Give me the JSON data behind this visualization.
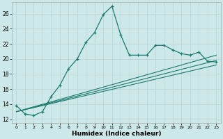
{
  "xlabel": "Humidex (Indice chaleur)",
  "bg_color": "#cce8e8",
  "grid_color": "#c0d8d8",
  "line_color": "#1a7a6e",
  "xlim": [
    -0.5,
    23.5
  ],
  "ylim": [
    11.5,
    27.5
  ],
  "yticks": [
    12,
    14,
    16,
    18,
    20,
    22,
    24,
    26
  ],
  "xticks": [
    0,
    1,
    2,
    3,
    4,
    5,
    6,
    7,
    8,
    9,
    10,
    11,
    12,
    13,
    14,
    15,
    16,
    17,
    18,
    19,
    20,
    21,
    22,
    23
  ],
  "main_x": [
    0,
    1,
    2,
    3,
    4,
    5,
    6,
    7,
    8,
    9,
    10,
    11,
    12,
    13,
    14,
    15,
    16,
    17,
    18,
    19,
    20,
    21,
    22,
    23
  ],
  "main_y": [
    13.8,
    12.7,
    12.5,
    13.0,
    15.0,
    16.5,
    18.7,
    20.0,
    22.2,
    23.5,
    25.9,
    27.0,
    23.2,
    20.5,
    20.5,
    20.5,
    21.8,
    21.8,
    21.2,
    20.7,
    20.5,
    20.9,
    19.7,
    19.6
  ],
  "ref_line1": {
    "x": [
      0,
      23
    ],
    "y": [
      13.0,
      20.5
    ]
  },
  "ref_line2": {
    "x": [
      0,
      23
    ],
    "y": [
      13.0,
      19.8
    ]
  },
  "ref_line3": {
    "x": [
      0,
      23
    ],
    "y": [
      13.0,
      19.2
    ]
  }
}
